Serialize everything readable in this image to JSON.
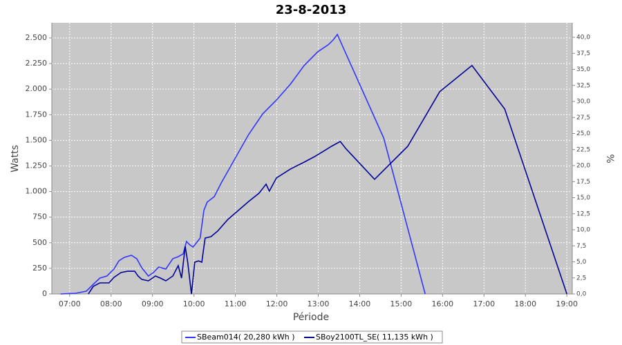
{
  "chart_data": {
    "type": "line",
    "title": "23-8-2013",
    "x_label": "Période",
    "y_label": "Watts",
    "y2_label": "%",
    "xlim": [
      6.57,
      19.13
    ],
    "xticks": [
      {
        "value": 7,
        "label": "07:00"
      },
      {
        "value": 8,
        "label": "08:00"
      },
      {
        "value": 9,
        "label": "09:00"
      },
      {
        "value": 10,
        "label": "10:00"
      },
      {
        "value": 11,
        "label": "11:00"
      },
      {
        "value": 12,
        "label": "12:00"
      },
      {
        "value": 13,
        "label": "13:00"
      },
      {
        "value": 14,
        "label": "14:00"
      },
      {
        "value": 15,
        "label": "15:00"
      },
      {
        "value": 16,
        "label": "16:00"
      },
      {
        "value": 17,
        "label": "17:00"
      },
      {
        "value": 18,
        "label": "18:00"
      },
      {
        "value": 19,
        "label": "19:00"
      }
    ],
    "ylim": [
      0,
      2648
    ],
    "yticks": [
      0,
      250,
      500,
      750,
      {
        "value": 1000,
        "label": "1.000"
      },
      {
        "value": 1250,
        "label": "1.250"
      },
      {
        "value": 1500,
        "label": "1.500"
      },
      {
        "value": 1750,
        "label": "1.750"
      },
      {
        "value": 2000,
        "label": "2.000"
      },
      {
        "value": 2250,
        "label": "2.250"
      },
      {
        "value": 2500,
        "label": "2.500"
      }
    ],
    "y2lim": [
      0,
      42.26
    ],
    "y2ticks": [
      {
        "value": 0,
        "label": "0,0"
      },
      {
        "value": 2.5,
        "label": "2,5"
      },
      {
        "value": 5,
        "label": "5,0"
      },
      {
        "value": 7.5,
        "label": "7,5"
      },
      {
        "value": 10,
        "label": "10,0"
      },
      {
        "value": 12.5,
        "label": "12,5"
      },
      {
        "value": 15,
        "label": "15,0"
      },
      {
        "value": 17.5,
        "label": "17,5"
      },
      {
        "value": 20,
        "label": "20,0"
      },
      {
        "value": 22.5,
        "label": "22,5"
      },
      {
        "value": 25,
        "label": "25,0"
      },
      {
        "value": 27.5,
        "label": "27,5"
      },
      {
        "value": 30,
        "label": "30,0"
      },
      {
        "value": 32.5,
        "label": "32,5"
      },
      {
        "value": 35,
        "label": "35,0"
      },
      {
        "value": 37.5,
        "label": "37,5"
      },
      {
        "value": 40,
        "label": "40,0"
      }
    ],
    "grid": true,
    "legend": "bottom",
    "series": [
      {
        "name": "SBeam014( 20,280 kWh )",
        "color": "#3333ff",
        "x": [
          6.78,
          7.15,
          7.4,
          7.57,
          7.73,
          7.9,
          8.07,
          8.19,
          8.32,
          8.49,
          8.62,
          8.74,
          8.9,
          9.02,
          9.15,
          9.32,
          9.49,
          9.62,
          9.74,
          9.82,
          9.9,
          9.98,
          10.15,
          10.24,
          10.32,
          10.49,
          10.66,
          10.99,
          11.32,
          11.66,
          11.99,
          12.33,
          12.66,
          12.99,
          13.24,
          13.36,
          13.46,
          14.58,
          15.58
        ],
        "values": [
          0,
          7,
          27,
          94,
          155,
          175,
          243,
          324,
          357,
          377,
          344,
          256,
          175,
          209,
          263,
          243,
          344,
          364,
          391,
          512,
          479,
          458,
          546,
          816,
          897,
          950,
          1085,
          1321,
          1557,
          1759,
          1893,
          2049,
          2231,
          2366,
          2433,
          2480,
          2534,
          1523,
          0
        ]
      },
      {
        "name": "SBoy2100TL_SE( 11,135 kWh )",
        "color": "#000099",
        "x": [
          7.45,
          7.57,
          7.73,
          7.95,
          8.07,
          8.24,
          8.4,
          8.57,
          8.65,
          8.74,
          8.9,
          9.07,
          9.19,
          9.32,
          9.49,
          9.62,
          9.7,
          9.79,
          9.85,
          9.94,
          10.02,
          10.11,
          10.19,
          10.27,
          10.41,
          10.57,
          10.82,
          11.07,
          11.32,
          11.57,
          11.74,
          11.82,
          11.99,
          12.33,
          12.66,
          12.91,
          13.16,
          13.32,
          13.53,
          13.66,
          14.36,
          15.16,
          15.93,
          16.71,
          17.5,
          19.0
        ],
        "values": [
          0,
          74,
          108,
          108,
          162,
          209,
          222,
          222,
          175,
          142,
          128,
          175,
          155,
          128,
          175,
          276,
          155,
          465,
          310,
          0,
          310,
          323,
          310,
          546,
          559,
          613,
          728,
          815,
          903,
          984,
          1072,
          1004,
          1132,
          1220,
          1287,
          1341,
          1402,
          1442,
          1489,
          1422,
          1119,
          1442,
          1975,
          2231,
          1806,
          0
        ]
      }
    ]
  }
}
